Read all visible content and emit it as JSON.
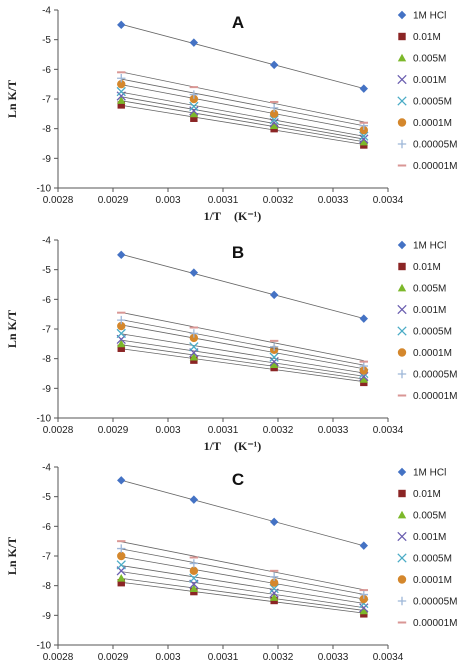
{
  "series_styles": [
    {
      "name": "1M HCl",
      "color": "#4472c4",
      "marker": "diamond"
    },
    {
      "name": "0.01M",
      "color": "#8b2525",
      "marker": "square"
    },
    {
      "name": "0.005M",
      "color": "#7cb82a",
      "marker": "triangle"
    },
    {
      "name": "0.001M",
      "color": "#6b5fb0",
      "marker": "x"
    },
    {
      "name": "0.0005M",
      "color": "#4bacc6",
      "marker": "x"
    },
    {
      "name": "0.0001M",
      "color": "#d4872c",
      "marker": "circle"
    },
    {
      "name": "0.00005M",
      "color": "#9db6d8",
      "marker": "plus"
    },
    {
      "name": "0.00001M",
      "color": "#d99694",
      "marker": "dash"
    }
  ],
  "chart_data": [
    {
      "type": "scatter",
      "title": "A",
      "xlabel": "1/T",
      "xlabel_unit": "(K⁻¹)",
      "ylabel": "Ln K/T",
      "xlim": [
        0.0028,
        0.0034
      ],
      "ylim": [
        -10,
        -4
      ],
      "xticks": [
        "0.0028",
        "0.0029",
        "0.003",
        "0.0031",
        "0.0032",
        "0.0033",
        "0.0034"
      ],
      "yticks": [
        "-4",
        "-5",
        "-6",
        "-7",
        "-8",
        "-9",
        "-10"
      ],
      "trendlines": true,
      "legend": "right",
      "x": [
        0.002915,
        0.003047,
        0.003193,
        0.003356
      ],
      "series": [
        {
          "name": "1M HCl",
          "values": [
            -4.5,
            -5.1,
            -5.85,
            -6.65
          ]
        },
        {
          "name": "0.01M",
          "values": [
            -7.2,
            -7.65,
            -8.0,
            -8.55
          ]
        },
        {
          "name": "0.005M",
          "values": [
            -7.05,
            -7.5,
            -7.9,
            -8.45
          ]
        },
        {
          "name": "0.001M",
          "values": [
            -6.9,
            -7.4,
            -7.8,
            -8.35
          ]
        },
        {
          "name": "0.0005M",
          "values": [
            -6.75,
            -7.25,
            -7.7,
            -8.25
          ]
        },
        {
          "name": "0.0001M",
          "values": [
            -6.5,
            -7.0,
            -7.5,
            -8.05
          ]
        },
        {
          "name": "0.00005M",
          "values": [
            -6.3,
            -6.85,
            -7.3,
            -7.9
          ]
        },
        {
          "name": "0.00001M",
          "values": [
            -6.1,
            -6.6,
            -7.1,
            -7.8
          ]
        }
      ]
    },
    {
      "type": "scatter",
      "title": "B",
      "xlabel": "1/T",
      "xlabel_unit": "(K⁻¹)",
      "ylabel": "Ln K/T",
      "xlim": [
        0.0028,
        0.0034
      ],
      "ylim": [
        -10,
        -4
      ],
      "xticks": [
        "0.0028",
        "0.0029",
        "0.003",
        "0.0031",
        "0.0032",
        "0.0033",
        "0.0034"
      ],
      "yticks": [
        "-4",
        "-5",
        "-6",
        "-7",
        "-8",
        "-9",
        "-10"
      ],
      "trendlines": true,
      "legend": "right",
      "x": [
        0.002915,
        0.003047,
        0.003193,
        0.003356
      ],
      "series": [
        {
          "name": "1M HCl",
          "values": [
            -4.5,
            -5.1,
            -5.85,
            -6.65
          ]
        },
        {
          "name": "0.01M",
          "values": [
            -7.65,
            -8.05,
            -8.3,
            -8.8
          ]
        },
        {
          "name": "0.005M",
          "values": [
            -7.5,
            -7.95,
            -8.2,
            -8.7
          ]
        },
        {
          "name": "0.001M",
          "values": [
            -7.35,
            -7.8,
            -8.1,
            -8.6
          ]
        },
        {
          "name": "0.0005M",
          "values": [
            -7.15,
            -7.6,
            -7.95,
            -8.5
          ]
        },
        {
          "name": "0.0001M",
          "values": [
            -6.9,
            -7.3,
            -7.7,
            -8.4
          ]
        },
        {
          "name": "0.00005M",
          "values": [
            -6.7,
            -7.15,
            -7.6,
            -8.25
          ]
        },
        {
          "name": "0.00001M",
          "values": [
            -6.45,
            -6.95,
            -7.4,
            -8.1
          ]
        }
      ]
    },
    {
      "type": "scatter",
      "title": "C",
      "xlabel": "1/T",
      "xlabel_unit": "(K⁻¹)",
      "ylabel": "Ln K/T",
      "xlim": [
        0.0028,
        0.0034
      ],
      "ylim": [
        -10,
        -4
      ],
      "xticks": [
        "0.0028",
        "0.0029",
        "0.003",
        "0.0031",
        "0.0032",
        "0.0033",
        "0.0034"
      ],
      "yticks": [
        "-4",
        "-5",
        "-6",
        "-7",
        "-8",
        "-9",
        "-10"
      ],
      "trendlines": true,
      "legend": "right",
      "x": [
        0.002915,
        0.003047,
        0.003193,
        0.003356
      ],
      "series": [
        {
          "name": "1M HCl",
          "values": [
            -4.45,
            -5.1,
            -5.85,
            -6.65
          ]
        },
        {
          "name": "0.01M",
          "values": [
            -7.9,
            -8.2,
            -8.5,
            -8.95
          ]
        },
        {
          "name": "0.005M",
          "values": [
            -7.75,
            -8.1,
            -8.4,
            -8.85
          ]
        },
        {
          "name": "0.001M",
          "values": [
            -7.5,
            -7.95,
            -8.25,
            -8.75
          ]
        },
        {
          "name": "0.0005M",
          "values": [
            -7.3,
            -7.75,
            -8.1,
            -8.6
          ]
        },
        {
          "name": "0.0001M",
          "values": [
            -7.0,
            -7.5,
            -7.9,
            -8.45
          ]
        },
        {
          "name": "0.00005M",
          "values": [
            -6.75,
            -7.25,
            -7.7,
            -8.3
          ]
        },
        {
          "name": "0.00001M",
          "values": [
            -6.5,
            -7.05,
            -7.5,
            -8.15
          ]
        }
      ]
    }
  ]
}
